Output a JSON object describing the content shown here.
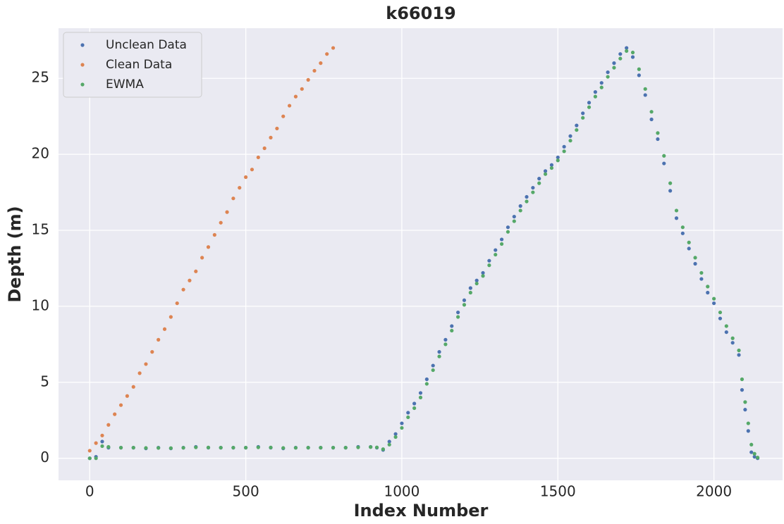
{
  "chart_data": {
    "type": "scatter",
    "title": "k66019",
    "x_label": "Index Number",
    "y_label": "Depth (m)",
    "xlim": [
      -100,
      2220
    ],
    "ylim": [
      -1.45,
      28.3
    ],
    "xticks": [
      0,
      500,
      1000,
      1500,
      2000
    ],
    "yticks": [
      0,
      5,
      10,
      15,
      20,
      25
    ],
    "grid": true,
    "legend": "upper left",
    "series": [
      {
        "name": "Unclean Data",
        "color": "#4c72b0",
        "x": [
          0,
          20,
          40,
          60,
          100,
          140,
          180,
          220,
          260,
          300,
          340,
          380,
          420,
          460,
          500,
          540,
          580,
          620,
          660,
          700,
          740,
          780,
          820,
          860,
          900,
          920,
          940,
          960,
          980,
          1000,
          1020,
          1040,
          1060,
          1080,
          1100,
          1120,
          1140,
          1160,
          1180,
          1200,
          1220,
          1240,
          1260,
          1280,
          1300,
          1320,
          1340,
          1360,
          1380,
          1400,
          1420,
          1440,
          1460,
          1480,
          1500,
          1520,
          1540,
          1560,
          1580,
          1600,
          1620,
          1640,
          1660,
          1680,
          1700,
          1720,
          1740,
          1760,
          1780,
          1800,
          1820,
          1840,
          1860,
          1880,
          1900,
          1920,
          1940,
          1960,
          1980,
          2000,
          2020,
          2040,
          2060,
          2080,
          2090,
          2100,
          2110,
          2120,
          2130,
          2140
        ],
        "values": [
          0,
          0.1,
          1.1,
          0.7,
          0.7,
          0.7,
          0.65,
          0.7,
          0.65,
          0.7,
          0.75,
          0.7,
          0.7,
          0.7,
          0.7,
          0.75,
          0.7,
          0.65,
          0.7,
          0.7,
          0.7,
          0.7,
          0.7,
          0.75,
          0.75,
          0.7,
          0.55,
          1.1,
          1.6,
          2.3,
          3.0,
          3.6,
          4.3,
          5.2,
          6.1,
          7.0,
          7.8,
          8.7,
          9.6,
          10.4,
          11.2,
          11.7,
          12.2,
          13.0,
          13.7,
          14.4,
          15.2,
          15.9,
          16.6,
          17.2,
          17.8,
          18.4,
          18.9,
          19.3,
          19.8,
          20.5,
          21.2,
          21.9,
          22.7,
          23.4,
          24.1,
          24.7,
          25.4,
          26.0,
          26.6,
          27.0,
          26.4,
          25.2,
          23.9,
          22.3,
          21.0,
          19.4,
          17.6,
          15.8,
          14.8,
          13.8,
          12.8,
          11.8,
          10.9,
          10.2,
          9.2,
          8.3,
          7.6,
          6.8,
          4.5,
          3.2,
          1.8,
          0.4,
          0.1,
          0
        ]
      },
      {
        "name": "Clean Data",
        "color": "#dd8452",
        "x": [
          0,
          20,
          40,
          60,
          80,
          100,
          120,
          140,
          160,
          180,
          200,
          220,
          240,
          260,
          280,
          300,
          320,
          340,
          360,
          380,
          400,
          420,
          440,
          460,
          480,
          500,
          520,
          540,
          560,
          580,
          600,
          620,
          640,
          660,
          680,
          700,
          720,
          740,
          760,
          780
        ],
        "values": [
          0.5,
          1.0,
          1.5,
          2.2,
          2.9,
          3.5,
          4.1,
          4.7,
          5.6,
          6.2,
          7.0,
          7.8,
          8.5,
          9.3,
          10.2,
          11.1,
          11.7,
          12.3,
          13.2,
          13.9,
          14.7,
          15.5,
          16.2,
          17.1,
          17.8,
          18.5,
          19.0,
          19.8,
          20.4,
          21.1,
          21.7,
          22.5,
          23.2,
          23.8,
          24.3,
          24.9,
          25.5,
          26.0,
          26.6,
          27.0
        ]
      },
      {
        "name": "EWMA",
        "color": "#55a868",
        "x": [
          0,
          20,
          40,
          60,
          100,
          140,
          180,
          220,
          260,
          300,
          340,
          380,
          420,
          460,
          500,
          540,
          580,
          620,
          660,
          700,
          740,
          780,
          820,
          860,
          900,
          920,
          940,
          960,
          980,
          1000,
          1020,
          1040,
          1060,
          1080,
          1100,
          1120,
          1140,
          1160,
          1180,
          1200,
          1220,
          1240,
          1260,
          1280,
          1300,
          1320,
          1340,
          1360,
          1380,
          1400,
          1420,
          1440,
          1460,
          1480,
          1500,
          1520,
          1540,
          1560,
          1580,
          1600,
          1620,
          1640,
          1660,
          1680,
          1700,
          1720,
          1740,
          1760,
          1780,
          1800,
          1820,
          1840,
          1860,
          1880,
          1900,
          1920,
          1940,
          1960,
          1980,
          2000,
          2020,
          2040,
          2060,
          2080,
          2090,
          2100,
          2110,
          2120,
          2130,
          2140
        ],
        "values": [
          0,
          0,
          0.8,
          0.75,
          0.7,
          0.7,
          0.68,
          0.68,
          0.67,
          0.69,
          0.72,
          0.71,
          0.7,
          0.7,
          0.7,
          0.72,
          0.71,
          0.68,
          0.69,
          0.7,
          0.7,
          0.7,
          0.7,
          0.72,
          0.74,
          0.72,
          0.6,
          0.9,
          1.4,
          2.0,
          2.7,
          3.3,
          4.0,
          4.9,
          5.8,
          6.7,
          7.5,
          8.4,
          9.3,
          10.1,
          10.9,
          11.5,
          12.0,
          12.7,
          13.4,
          14.1,
          14.9,
          15.6,
          16.3,
          16.9,
          17.5,
          18.1,
          18.7,
          19.1,
          19.6,
          20.2,
          20.9,
          21.6,
          22.4,
          23.1,
          23.8,
          24.4,
          25.1,
          25.7,
          26.3,
          26.8,
          26.7,
          25.6,
          24.3,
          22.8,
          21.4,
          19.9,
          18.1,
          16.3,
          15.2,
          14.2,
          13.2,
          12.2,
          11.3,
          10.5,
          9.6,
          8.7,
          7.9,
          7.1,
          5.2,
          3.7,
          2.3,
          0.9,
          0.3,
          0.05
        ]
      }
    ]
  }
}
